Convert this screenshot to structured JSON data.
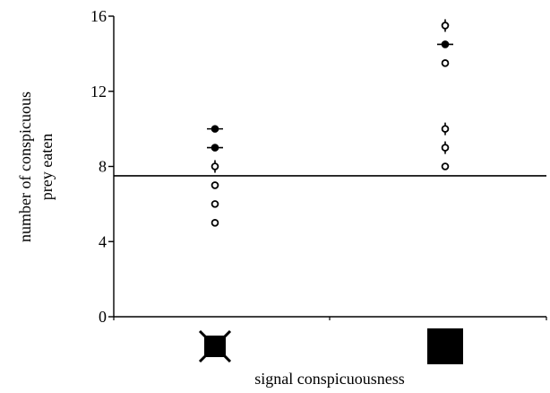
{
  "chart_data": {
    "type": "scatter",
    "xlabel": "signal conspicuousness",
    "ylabel": [
      "number of conspicuous",
      "prey eaten"
    ],
    "ylim": [
      0,
      16
    ],
    "yticks": [
      0,
      4,
      8,
      12,
      16
    ],
    "categories": [
      "cross-marked black square",
      "plain black square"
    ],
    "category_icons": [
      "black-square-with-cross-icon",
      "black-square-icon"
    ],
    "reference_line": {
      "y": 7.5,
      "style": "solid horizontal"
    },
    "series": [
      {
        "category": "cross-marked black square",
        "points": [
          {
            "y": 10,
            "marker": "filled-with-horizontal-bar"
          },
          {
            "y": 9,
            "marker": "filled-with-horizontal-bar"
          },
          {
            "y": 8,
            "marker": "open-with-vertical-bar"
          },
          {
            "y": 7,
            "marker": "open"
          },
          {
            "y": 6,
            "marker": "open"
          },
          {
            "y": 5,
            "marker": "open"
          }
        ]
      },
      {
        "category": "plain black square",
        "points": [
          {
            "y": 15.5,
            "marker": "open-with-vertical-bar"
          },
          {
            "y": 14.5,
            "marker": "filled-with-horizontal-bar"
          },
          {
            "y": 13.5,
            "marker": "open"
          },
          {
            "y": 10,
            "marker": "open-with-vertical-bar"
          },
          {
            "y": 9,
            "marker": "open-with-vertical-bar"
          },
          {
            "y": 8,
            "marker": "open"
          }
        ]
      }
    ],
    "grid": false,
    "legend": "none",
    "colors": {
      "ink": "#000000",
      "background": "#ffffff"
    }
  }
}
